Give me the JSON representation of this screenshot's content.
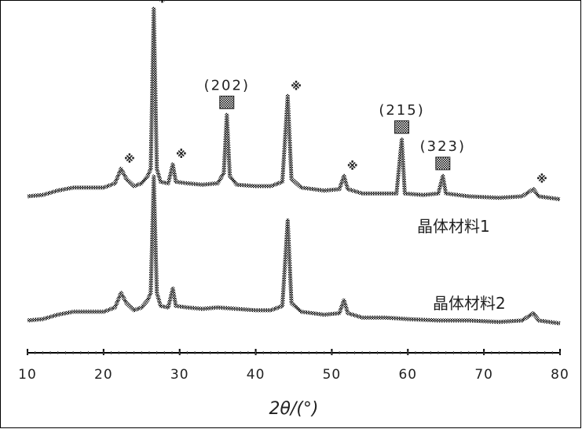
{
  "chart_data": {
    "type": "line",
    "title": "",
    "xlabel": "2θ/(°)",
    "ylabel": "",
    "xlim": [
      10,
      80
    ],
    "x_ticks": [
      10,
      20,
      30,
      40,
      50,
      60,
      70,
      80
    ],
    "grid": false,
    "legend": "none",
    "series": [
      {
        "name": "晶体材料1",
        "points": [
          [
            10,
            0.06
          ],
          [
            12,
            0.07
          ],
          [
            14,
            0.1
          ],
          [
            16,
            0.12
          ],
          [
            18,
            0.12
          ],
          [
            20,
            0.12
          ],
          [
            21.5,
            0.15
          ],
          [
            22.3,
            0.25
          ],
          [
            23,
            0.18
          ],
          [
            24,
            0.13
          ],
          [
            25,
            0.15
          ],
          [
            25.8,
            0.2
          ],
          [
            26.2,
            0.25
          ],
          [
            26.6,
            1.35
          ],
          [
            27.0,
            0.25
          ],
          [
            27.5,
            0.16
          ],
          [
            28.5,
            0.15
          ],
          [
            29.1,
            0.28
          ],
          [
            29.5,
            0.16
          ],
          [
            31,
            0.15
          ],
          [
            33,
            0.14
          ],
          [
            35,
            0.15
          ],
          [
            35.8,
            0.22
          ],
          [
            36.2,
            0.62
          ],
          [
            36.6,
            0.2
          ],
          [
            37.5,
            0.14
          ],
          [
            40,
            0.13
          ],
          [
            42,
            0.13
          ],
          [
            43.5,
            0.16
          ],
          [
            44.2,
            0.75
          ],
          [
            44.7,
            0.18
          ],
          [
            46,
            0.12
          ],
          [
            49,
            0.1
          ],
          [
            51,
            0.11
          ],
          [
            51.6,
            0.2
          ],
          [
            52.1,
            0.11
          ],
          [
            54,
            0.08
          ],
          [
            57,
            0.08
          ],
          [
            58.5,
            0.08
          ],
          [
            59.2,
            0.45
          ],
          [
            59.6,
            0.08
          ],
          [
            62,
            0.07
          ],
          [
            64,
            0.08
          ],
          [
            64.6,
            0.2
          ],
          [
            65,
            0.08
          ],
          [
            68,
            0.06
          ],
          [
            72,
            0.05
          ],
          [
            75,
            0.06
          ],
          [
            76.5,
            0.11
          ],
          [
            77.2,
            0.06
          ],
          [
            80,
            0.04
          ]
        ]
      },
      {
        "name": "晶体材料2",
        "points": [
          [
            10,
            0.06
          ],
          [
            12,
            0.07
          ],
          [
            14,
            0.1
          ],
          [
            16,
            0.12
          ],
          [
            18,
            0.12
          ],
          [
            20,
            0.12
          ],
          [
            21.5,
            0.15
          ],
          [
            22.3,
            0.25
          ],
          [
            23,
            0.18
          ],
          [
            24,
            0.13
          ],
          [
            25,
            0.15
          ],
          [
            25.8,
            0.2
          ],
          [
            26.2,
            0.25
          ],
          [
            26.6,
            1.05
          ],
          [
            27.0,
            0.25
          ],
          [
            27.5,
            0.16
          ],
          [
            28.5,
            0.15
          ],
          [
            29.1,
            0.28
          ],
          [
            29.5,
            0.16
          ],
          [
            31,
            0.15
          ],
          [
            33,
            0.14
          ],
          [
            35,
            0.15
          ],
          [
            37.5,
            0.14
          ],
          [
            40,
            0.13
          ],
          [
            42,
            0.13
          ],
          [
            43.5,
            0.16
          ],
          [
            44.2,
            0.75
          ],
          [
            44.7,
            0.18
          ],
          [
            46,
            0.12
          ],
          [
            49,
            0.1
          ],
          [
            51,
            0.11
          ],
          [
            51.6,
            0.2
          ],
          [
            52.1,
            0.11
          ],
          [
            54,
            0.08
          ],
          [
            57,
            0.08
          ],
          [
            60,
            0.07
          ],
          [
            64,
            0.06
          ],
          [
            68,
            0.06
          ],
          [
            72,
            0.05
          ],
          [
            75,
            0.06
          ],
          [
            76.5,
            0.11
          ],
          [
            77.2,
            0.06
          ],
          [
            80,
            0.04
          ]
        ]
      }
    ],
    "annotations": {
      "hkl": [
        {
          "x": 36.2,
          "text": "(202)"
        },
        {
          "x": 59.2,
          "text": "(215)"
        },
        {
          "x": 64.6,
          "text": "(323)"
        }
      ],
      "star_peaks": [
        22.3,
        26.6,
        29.1,
        44.2,
        51.6,
        76.5
      ],
      "star_symbol": "※"
    }
  }
}
